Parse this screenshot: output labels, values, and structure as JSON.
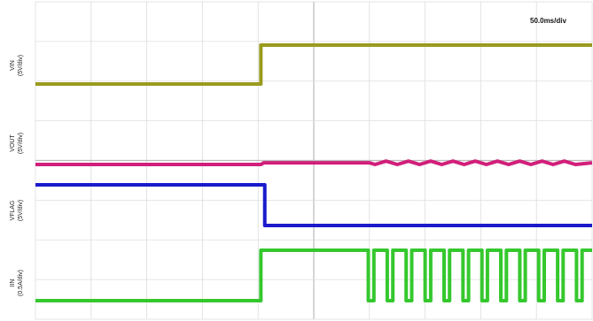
{
  "chart_data": {
    "type": "line",
    "title": "",
    "timebase": "50.0ms/div",
    "x_unit": "div",
    "xlim": [
      0,
      10
    ],
    "grid": true,
    "channels": [
      {
        "name": "VIN",
        "scale": "(5V/div)",
        "color": "#9a9a1e",
        "points": [
          [
            0,
            0
          ],
          [
            4.05,
            0
          ],
          [
            4.05,
            1.0
          ],
          [
            10,
            1.0
          ]
        ]
      },
      {
        "name": "VOUT",
        "scale": "(5V/div)",
        "color": "#d11f7a",
        "points": [
          [
            0,
            0
          ],
          [
            4.05,
            0
          ],
          [
            4.1,
            0.05
          ],
          [
            6.0,
            0.05
          ],
          [
            6.1,
            0.0
          ],
          [
            6.3,
            0.1
          ],
          [
            6.5,
            0.0
          ],
          [
            6.7,
            0.1
          ],
          [
            6.9,
            0.0
          ],
          [
            7.1,
            0.1
          ],
          [
            7.3,
            0.0
          ],
          [
            7.5,
            0.1
          ],
          [
            7.7,
            0.0
          ],
          [
            7.9,
            0.1
          ],
          [
            8.1,
            0.0
          ],
          [
            8.3,
            0.1
          ],
          [
            8.5,
            0.0
          ],
          [
            8.7,
            0.1
          ],
          [
            8.9,
            0.0
          ],
          [
            9.1,
            0.1
          ],
          [
            9.3,
            0.0
          ],
          [
            9.5,
            0.1
          ],
          [
            9.7,
            0.0
          ],
          [
            10,
            0.05
          ]
        ]
      },
      {
        "name": "VFLAG",
        "scale": "(5V/div)",
        "color": "#1a1acc",
        "points": [
          [
            0,
            1.0
          ],
          [
            4.12,
            1.0
          ],
          [
            4.12,
            0
          ],
          [
            10,
            0
          ]
        ]
      },
      {
        "name": "IIN",
        "scale": "(0.5A/div)",
        "color": "#35c82e",
        "points": [
          [
            0,
            0
          ],
          [
            4.05,
            0
          ],
          [
            4.05,
            1.0
          ],
          [
            5.98,
            1.0
          ],
          [
            5.98,
            0
          ],
          [
            6.08,
            0
          ],
          [
            6.08,
            1.0
          ],
          [
            6.32,
            1.0
          ],
          [
            6.32,
            0
          ],
          [
            6.42,
            0
          ],
          [
            6.42,
            1.0
          ],
          [
            6.66,
            1.0
          ],
          [
            6.66,
            0
          ],
          [
            6.76,
            0
          ],
          [
            6.76,
            1.0
          ],
          [
            7.0,
            1.0
          ],
          [
            7.0,
            0
          ],
          [
            7.1,
            0
          ],
          [
            7.1,
            1.0
          ],
          [
            7.34,
            1.0
          ],
          [
            7.34,
            0
          ],
          [
            7.44,
            0
          ],
          [
            7.44,
            1.0
          ],
          [
            7.68,
            1.0
          ],
          [
            7.68,
            0
          ],
          [
            7.78,
            0
          ],
          [
            7.78,
            1.0
          ],
          [
            8.02,
            1.0
          ],
          [
            8.02,
            0
          ],
          [
            8.12,
            0
          ],
          [
            8.12,
            1.0
          ],
          [
            8.36,
            1.0
          ],
          [
            8.36,
            0
          ],
          [
            8.46,
            0
          ],
          [
            8.46,
            1.0
          ],
          [
            8.7,
            1.0
          ],
          [
            8.7,
            0
          ],
          [
            8.8,
            0
          ],
          [
            8.8,
            1.0
          ],
          [
            9.04,
            1.0
          ],
          [
            9.04,
            0
          ],
          [
            9.14,
            0
          ],
          [
            9.14,
            1.0
          ],
          [
            9.38,
            1.0
          ],
          [
            9.38,
            0
          ],
          [
            9.48,
            0
          ],
          [
            9.48,
            1.0
          ],
          [
            9.72,
            1.0
          ],
          [
            9.72,
            0
          ],
          [
            9.82,
            0
          ],
          [
            9.82,
            1.0
          ],
          [
            10,
            1.0
          ]
        ]
      }
    ]
  }
}
